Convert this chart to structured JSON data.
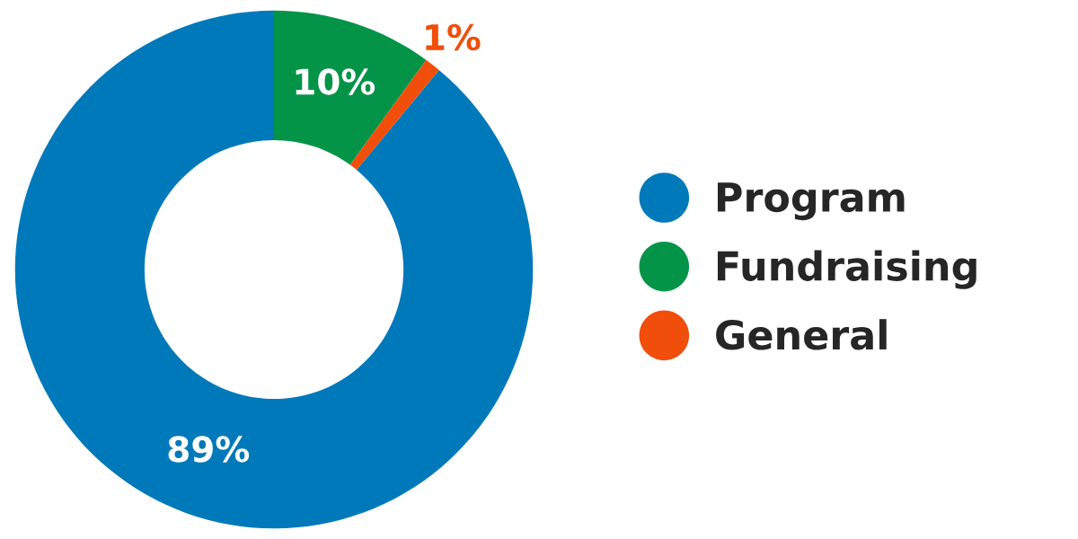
{
  "chart_data": {
    "type": "donut",
    "categories": [
      "Program",
      "Fundraising",
      "General"
    ],
    "values": [
      89,
      10,
      1
    ],
    "colors": [
      "#0079ba",
      "#039447",
      "#f04e0a"
    ],
    "value_labels": [
      "89%",
      "10%",
      "1%"
    ],
    "legend": "right"
  }
}
